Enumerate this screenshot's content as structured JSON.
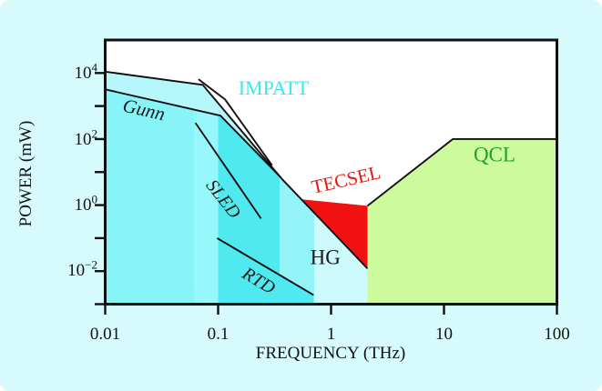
{
  "page": {
    "background_color": "#D7FBFD"
  },
  "chart_data": {
    "type": "area",
    "title": "",
    "xlabel": "FREQUENCY (THz)",
    "ylabel": "POWER (mW)",
    "x_axis": {
      "scale": "log",
      "min": 0.01,
      "max": 100,
      "ticks": [
        0.01,
        0.1,
        1,
        10,
        100
      ],
      "tick_labels": [
        "0.01",
        "0.1",
        "1",
        "10",
        "100"
      ],
      "grid": false
    },
    "y_axis": {
      "scale": "log",
      "min": 0.001,
      "max": 100000,
      "tick_exponents": [
        -3,
        -2,
        -1,
        0,
        1,
        2,
        3,
        4
      ],
      "labels": [
        {
          "base": "10",
          "exp": "4"
        },
        {
          "base": "10",
          "exp": "2"
        },
        {
          "base": "10",
          "exp": "0"
        },
        {
          "base": "10",
          "exp": "−2"
        }
      ],
      "grid": false
    },
    "regions": [
      {
        "name": "band-gunn-low",
        "fill": "#87F5F7",
        "points": [
          [
            0.01,
            11000
          ],
          [
            0.062,
            4700
          ],
          [
            0.062,
            0.001
          ],
          [
            0.01,
            0.001
          ]
        ]
      },
      {
        "name": "band-sled-edge",
        "fill": "#96F8FA",
        "points": [
          [
            0.062,
            4700
          ],
          [
            0.073,
            4400
          ],
          [
            0.1,
            1200
          ],
          [
            0.1,
            0.001
          ],
          [
            0.062,
            0.001
          ]
        ]
      },
      {
        "name": "band-mid-saturated",
        "fill": "#50E9EF",
        "points": [
          [
            0.1,
            1200
          ],
          [
            0.35,
            7.8
          ],
          [
            0.35,
            0.001
          ],
          [
            0.1,
            0.001
          ]
        ]
      },
      {
        "name": "band-upper-light",
        "fill": "#93F3F7",
        "points": [
          [
            0.35,
            7.8
          ],
          [
            0.37,
            6.0
          ],
          [
            0.71,
            0.57
          ],
          [
            0.71,
            0.001
          ],
          [
            0.35,
            0.001
          ]
        ]
      },
      {
        "name": "band-hg",
        "fill": "#CDFAFC",
        "points": [
          [
            0.71,
            0.57
          ],
          [
            2.1,
            0.012
          ],
          [
            2.1,
            0.001
          ],
          [
            0.71,
            0.001
          ]
        ]
      },
      {
        "name": "wedge-rtd",
        "fill": "#50E9EF",
        "points": [
          [
            0.35,
            0.0076
          ],
          [
            0.7,
            0.0019
          ],
          [
            0.7,
            0.001
          ],
          [
            0.35,
            0.001
          ]
        ]
      },
      {
        "name": "strip-impatt",
        "fill": "#B5F7FA",
        "points": [
          [
            0.01,
            11000
          ],
          [
            0.073,
            4400
          ],
          [
            0.37,
            6.0
          ],
          [
            0.36,
            6.8
          ],
          [
            0.105,
            510
          ],
          [
            0.01,
            3200
          ]
        ]
      },
      {
        "name": "region-qcl",
        "fill": "#CCFA9D",
        "points": [
          [
            2.1,
            0.001
          ],
          [
            2.1,
            0.95
          ],
          [
            12,
            100
          ],
          [
            100,
            100
          ],
          [
            100,
            0.001
          ]
        ]
      },
      {
        "name": "region-tecsel",
        "fill": "#F01110",
        "points": [
          [
            0.55,
            1.5
          ],
          [
            2.1,
            0.95
          ],
          [
            2.1,
            0.012
          ]
        ]
      }
    ],
    "lines": [
      {
        "name": "main-upper-boundary",
        "points": [
          [
            0.01,
            11000
          ],
          [
            0.073,
            4400
          ],
          [
            0.37,
            6.0
          ],
          [
            2.1,
            0.012
          ]
        ]
      },
      {
        "name": "gunn-curve",
        "points": [
          [
            0.01,
            3200
          ],
          [
            0.105,
            510
          ],
          [
            0.36,
            6.8
          ]
        ]
      },
      {
        "name": "impatt-curve",
        "points": [
          [
            0.067,
            6500
          ],
          [
            0.115,
            1600
          ],
          [
            0.3,
            16
          ]
        ]
      },
      {
        "name": "sled-line",
        "points": [
          [
            0.063,
            310
          ],
          [
            0.24,
            0.39
          ]
        ]
      },
      {
        "name": "rtd-line",
        "points": [
          [
            0.098,
            0.1
          ],
          [
            0.7,
            0.0019
          ]
        ]
      },
      {
        "name": "qcl-top-boundary",
        "points": [
          [
            2.1,
            0.95
          ],
          [
            12,
            100
          ],
          [
            100,
            100
          ]
        ]
      }
    ],
    "labels": [
      {
        "name": "gunn",
        "text": "Gunn",
        "color": "#1a1a1a",
        "f": 0.022,
        "p": 750,
        "rotate": 13,
        "size": 21,
        "italic": true
      },
      {
        "name": "impatt",
        "text": "IMPATT",
        "color": "#3BE7ED",
        "f": 0.31,
        "p": 3400,
        "rotate": 0,
        "size": 22,
        "italic": false
      },
      {
        "name": "sled",
        "text": "SLED",
        "color": "#1a1a1a",
        "f": 0.11,
        "p": 1.5,
        "rotate": 52,
        "size": 20,
        "italic": true
      },
      {
        "name": "rtd",
        "text": "RTD",
        "color": "#1a1a1a",
        "f": 0.23,
        "p": 0.0052,
        "rotate": 31,
        "size": 20,
        "italic": true
      },
      {
        "name": "hg",
        "text": "HG",
        "color": "#1a1a1a",
        "f": 0.89,
        "p": 0.026,
        "rotate": 0,
        "size": 23,
        "italic": false
      },
      {
        "name": "tecsel",
        "text": "TECSEL",
        "color": "#E8150F",
        "f": 1.36,
        "p": 5.6,
        "rotate": -13,
        "size": 21,
        "italic": false
      },
      {
        "name": "qcl",
        "text": "QCL",
        "color": "#1EA41E",
        "f": 28,
        "p": 33,
        "rotate": 0,
        "size": 23,
        "italic": false
      }
    ],
    "legend": null,
    "frame_color": "#111111"
  }
}
